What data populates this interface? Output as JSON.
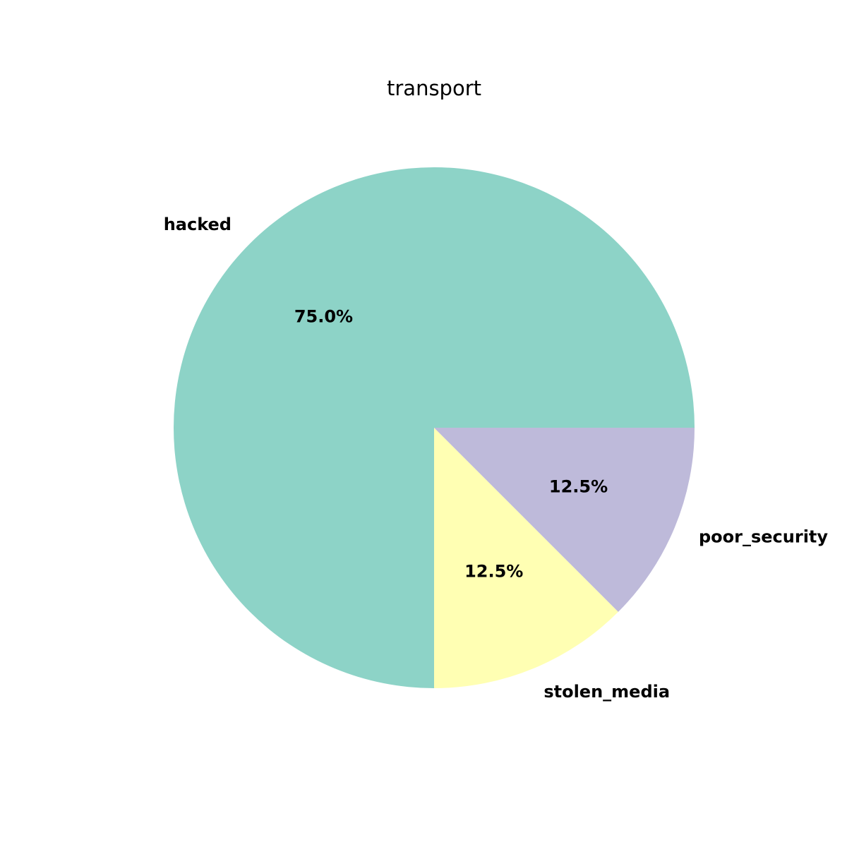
{
  "chart_data": {
    "type": "pie",
    "title": "transport",
    "slices": [
      {
        "label": "hacked",
        "value": 75.0,
        "pct_label": "75.0%",
        "color": "#8dd3c7"
      },
      {
        "label": "stolen_media",
        "value": 12.5,
        "pct_label": "12.5%",
        "color": "#ffffb3"
      },
      {
        "label": "poor_security",
        "value": 12.5,
        "pct_label": "12.5%",
        "color": "#bebada"
      }
    ],
    "start_angle_deg": 0,
    "direction": "counterclockwise",
    "legend": "none"
  }
}
